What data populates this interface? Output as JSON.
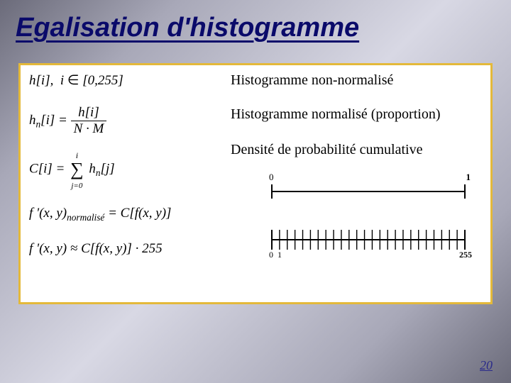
{
  "title": "Egalisation d'histogramme",
  "page_number": "20",
  "formulas": {
    "f1": "h[i],  i ∈ [0,255]",
    "f2_lhs": "h",
    "f2_sub": "n",
    "f2_bracket": "[i] =",
    "f2_num": "h[i]",
    "f2_den": "N · M",
    "f3_lhs": "C[i] =",
    "f3_sum_top": "i",
    "f3_sum_bot": "j=0",
    "f3_rhs": "h",
    "f3_rhs_sub": "n",
    "f3_rhs_br": "[j]",
    "f4": "f '(x, y)",
    "f4_sub": "normalisé",
    "f4_rhs": " = C[f(x, y)]",
    "f5": "f '(x, y) ≈ C[f(x, y)] · 255"
  },
  "labels": {
    "l1": "Histogramme non-normalisé",
    "l2": "Histogramme normalisé (proportion)",
    "l3": "Densité de probabilité cumulative"
  },
  "diagram1": {
    "left_label": "0",
    "right_label": "1"
  },
  "diagram2": {
    "left_labels": [
      "0",
      "1"
    ],
    "right_label": "255",
    "tick_count": 25
  },
  "colors": {
    "title_color": "#0a0a6a",
    "border_color": "#e4b93a",
    "bg_white": "#ffffff",
    "text": "#000000"
  }
}
